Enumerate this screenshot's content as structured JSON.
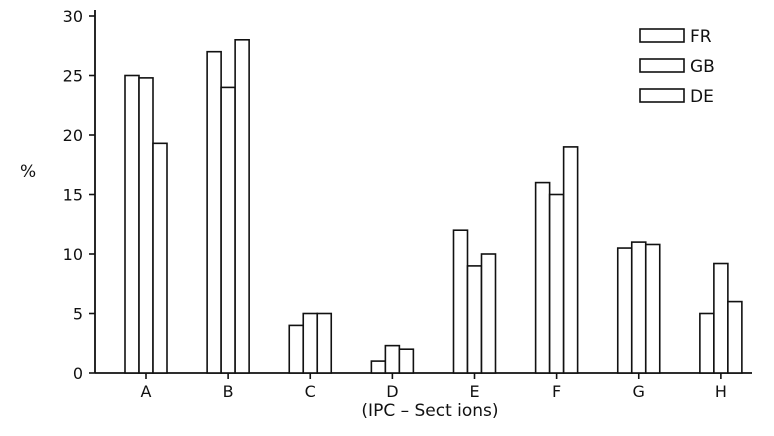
{
  "chart_data": {
    "type": "bar",
    "xlabel": "(IPC – Sect ions)",
    "ylabel": "%",
    "ylim": [
      0,
      30
    ],
    "yticks": [
      0,
      5,
      10,
      15,
      20,
      25,
      30
    ],
    "grid": false,
    "legend_position": "top-right",
    "categories": [
      "A",
      "B",
      "C",
      "D",
      "E",
      "F",
      "G",
      "H"
    ],
    "series": [
      {
        "name": "FR",
        "values": [
          25,
          27,
          4,
          1,
          12,
          16,
          10.5,
          5
        ]
      },
      {
        "name": "GB",
        "values": [
          24.8,
          24,
          5,
          2.3,
          9,
          15,
          11,
          9.2
        ]
      },
      {
        "name": "DE",
        "values": [
          19.3,
          28,
          5,
          2,
          10,
          19,
          10.8,
          6
        ]
      }
    ]
  }
}
